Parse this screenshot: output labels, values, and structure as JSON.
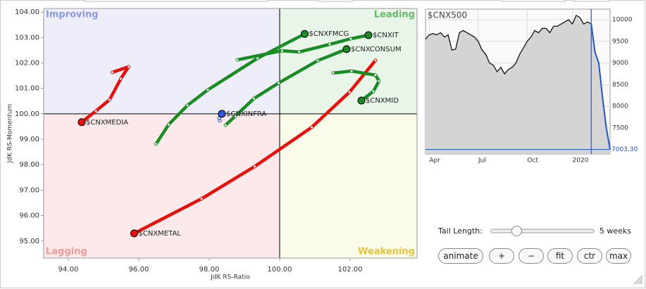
{
  "chart_data": [
    {
      "type": "rrg",
      "xlabel": "JdK RS-Ratio",
      "ylabel": "JdK RS-Momentum",
      "xlim": [
        93.3,
        103.9
      ],
      "ylim": [
        94.33,
        104.14
      ],
      "xticks": [
        {
          "value": 94,
          "label": "94.00"
        },
        {
          "value": 96,
          "label": "96.00"
        },
        {
          "value": 98,
          "label": "98.00"
        },
        {
          "value": 100,
          "label": "100.00"
        },
        {
          "value": 102,
          "label": "102.00"
        }
      ],
      "yticks": [
        {
          "value": 95,
          "label": "95.00"
        },
        {
          "value": 96,
          "label": "96.00"
        },
        {
          "value": 97,
          "label": "97.00"
        },
        {
          "value": 98,
          "label": "98.00"
        },
        {
          "value": 99,
          "label": "99.00"
        },
        {
          "value": 100,
          "label": "100.00"
        },
        {
          "value": 101,
          "label": "101.00"
        },
        {
          "value": 102,
          "label": "102.00"
        },
        {
          "value": 103,
          "label": "103.00"
        },
        {
          "value": 104,
          "label": "104.00"
        }
      ],
      "center": 100,
      "quadrants": {
        "improving": "Improving",
        "leading": "Leading",
        "lagging": "Lagging",
        "weakening": "Weakening"
      },
      "series": [
        {
          "name": "$CNXMETAL",
          "color": "#e8100c",
          "x": [
            102.72,
            101.98,
            100.91,
            99.29,
            97.78,
            95.87
          ],
          "values": [
            102.1,
            100.85,
            99.47,
            97.93,
            96.66,
            95.3
          ]
        },
        {
          "name": "$CNXMEDIA",
          "color": "#e8100c",
          "x": [
            95.25,
            95.71,
            95.49,
            95.17,
            94.78,
            94.38
          ],
          "values": [
            101.63,
            101.85,
            101.38,
            100.55,
            100.11,
            99.67
          ]
        },
        {
          "name": "$CNXFMCG",
          "color": "#1a8c24",
          "x": [
            96.49,
            96.85,
            97.38,
            97.96,
            99.37,
            100.71
          ],
          "values": [
            98.81,
            99.58,
            100.33,
            100.94,
            102.18,
            103.14
          ]
        },
        {
          "name": "$CNXIT",
          "color": "#1a8c24",
          "x": [
            98.8,
            100.07,
            100.55,
            101.42,
            102.02,
            102.52
          ],
          "values": [
            102.12,
            102.48,
            102.43,
            102.73,
            102.95,
            103.09
          ]
        },
        {
          "name": "$CNXCONSUM",
          "color": "#1a8c24",
          "x": [
            98.46,
            98.74,
            99.27,
            99.97,
            101.08,
            101.9
          ],
          "values": [
            99.55,
            99.91,
            100.6,
            101.21,
            102.09,
            102.54
          ]
        },
        {
          "name": "$CNXMID",
          "color": "#1a8c24",
          "x": [
            101.52,
            102.04,
            102.72,
            102.82,
            102.66,
            102.32
          ],
          "values": [
            101.6,
            101.68,
            101.52,
            101.29,
            100.88,
            100.52
          ]
        },
        {
          "name": "$CNXINFRA",
          "color": "#3355dd",
          "x": [
            98.3,
            98.28,
            98.36
          ],
          "values": [
            99.72,
            99.83,
            100.0
          ]
        }
      ]
    },
    {
      "type": "line",
      "title": "$CNX500",
      "categories": [
        null,
        "Apr",
        null,
        null,
        null,
        null,
        null,
        null,
        null,
        null,
        null,
        null,
        null,
        null,
        "Jul",
        null,
        null,
        null,
        null,
        null,
        null,
        null,
        null,
        null,
        null,
        null,
        null,
        "Oct",
        null,
        null,
        null,
        null,
        null,
        null,
        null,
        null,
        null,
        null,
        null,
        "2020",
        null,
        null,
        null,
        null,
        null,
        null,
        null,
        null,
        null,
        null
      ],
      "values": [
        9550,
        9650,
        9680,
        9650,
        9700,
        9600,
        9650,
        9300,
        9320,
        9700,
        9750,
        9700,
        9650,
        9600,
        9500,
        9300,
        9200,
        9000,
        8950,
        8800,
        8900,
        8750,
        8850,
        8900,
        9000,
        9200,
        9350,
        9500,
        9600,
        9750,
        9700,
        9800,
        9800,
        9700,
        9850,
        9850,
        9900,
        9950,
        10000,
        9900,
        10100,
        10050,
        9900,
        9950,
        9900,
        9250,
        9000,
        8200,
        7500,
        7003.3
      ],
      "value_labels": [
        null,
        null,
        null,
        null,
        null,
        null,
        null,
        null,
        null,
        null,
        null,
        null,
        null,
        null,
        null,
        null,
        null,
        null,
        null,
        null,
        null,
        null,
        null,
        null,
        null,
        null,
        null,
        null,
        null,
        null,
        null,
        null,
        null,
        null,
        null,
        null,
        null,
        null,
        null,
        null,
        null,
        null,
        null,
        null,
        null,
        null,
        null,
        null,
        null,
        "7003.30"
      ],
      "color": "#111111",
      "tail_color": "#2255cc",
      "fill": "#d4d4d4",
      "ylim": [
        6898,
        10244
      ],
      "yticks": [
        7500,
        8000,
        8500,
        9000,
        9500,
        10000
      ],
      "grid": true
    }
  ],
  "controls": {
    "tail_label": "Tail Length:",
    "tail_length": {
      "value": 5,
      "label": "5 weeks"
    },
    "tail_max": 20,
    "buttons": [
      "animate",
      "+",
      "−",
      "fit",
      "ctr",
      "max"
    ]
  }
}
